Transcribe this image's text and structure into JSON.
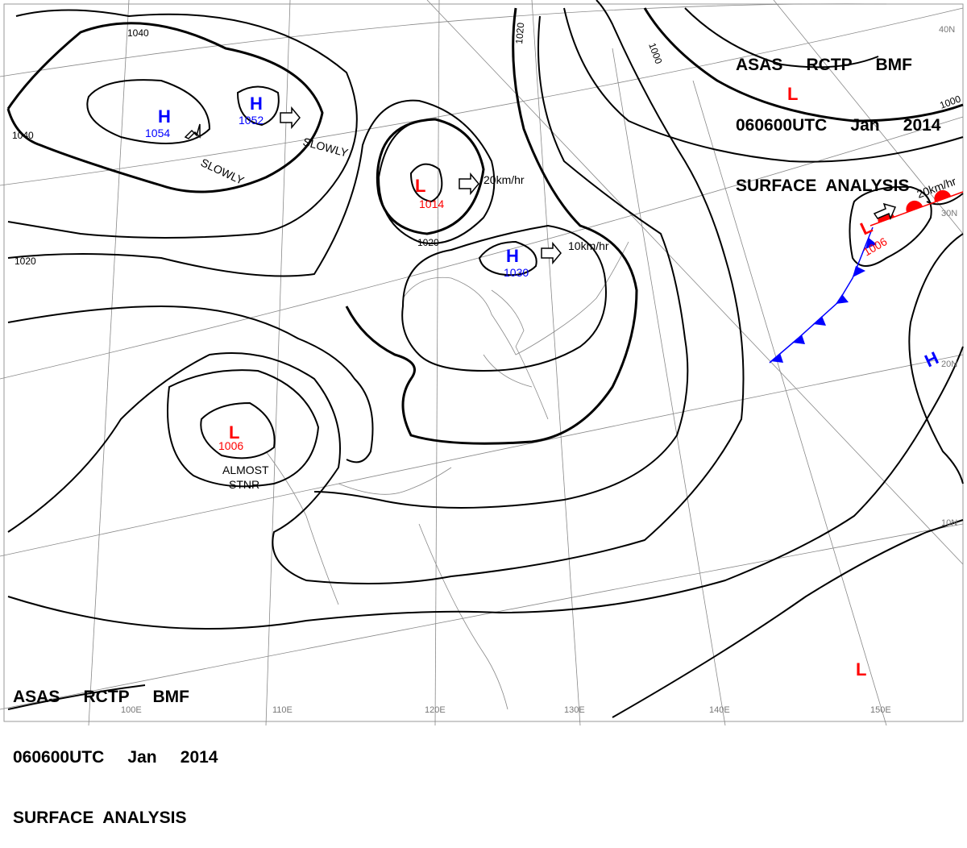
{
  "header": {
    "line1": "ASAS     RCTP     BMF",
    "line2": "060600UTC     Jan     2014",
    "line3": "SURFACE  ANALYSIS"
  },
  "colors": {
    "high": "#0000ff",
    "low": "#ff0000",
    "isobar": "#000000",
    "grid": "#808080",
    "coast": "#808080"
  },
  "grid_labels": {
    "lat": [
      "40N",
      "30N",
      "20N",
      "10N"
    ],
    "lon": [
      "100E",
      "110E",
      "120E",
      "130E",
      "140E",
      "150E"
    ]
  },
  "isobar_labels": [
    "1040",
    "1040",
    "1020",
    "1020",
    "1020",
    "1000",
    "1000"
  ],
  "centers": [
    {
      "type": "H",
      "value": "1054"
    },
    {
      "type": "H",
      "value": "1052"
    },
    {
      "type": "L",
      "value": "1014"
    },
    {
      "type": "H",
      "value": "1030"
    },
    {
      "type": "L",
      "value": "1006"
    },
    {
      "type": "L",
      "value": "1006"
    },
    {
      "type": "L",
      "value": ""
    },
    {
      "type": "H",
      "value": ""
    },
    {
      "type": "L",
      "value": ""
    }
  ],
  "motions": [
    "SLOWLY",
    "SLOWLY",
    "20km/hr",
    "10km/hr",
    "20km/hr",
    "ALMOST",
    "STNR"
  ],
  "fronts": [
    {
      "type": "warm",
      "color": "#ff0000"
    },
    {
      "type": "cold",
      "color": "#0000ff"
    }
  ]
}
